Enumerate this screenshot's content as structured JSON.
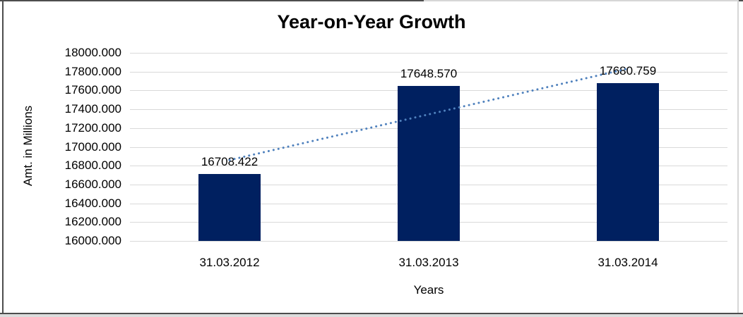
{
  "window": {
    "background_color": "#ffffff"
  },
  "chart_data": {
    "type": "bar",
    "title": "Year-on-Year Growth",
    "xlabel": "Years",
    "ylabel": "Amt. in Millions",
    "categories": [
      "31.03.2012",
      "31.03.2013",
      "31.03.2014"
    ],
    "values": [
      16708.422,
      17648.57,
      17680.759
    ],
    "data_labels": [
      "16708.422",
      "17648.570",
      "17680.759"
    ],
    "ylim": [
      16000,
      18000
    ],
    "ytick_step": 200,
    "ytick_labels": [
      "18000.000",
      "17800.000",
      "17600.000",
      "17400.000",
      "17200.000",
      "17000.000",
      "16800.000",
      "16600.000",
      "16400.000",
      "16200.000",
      "16000.000"
    ],
    "grid": true,
    "legend": false,
    "bar_color": "#002060",
    "gridline_color": "#d9d9d9",
    "text_color": "#000000",
    "trendline": {
      "type": "linear",
      "style": "dotted",
      "color": "#4f81bd"
    }
  }
}
